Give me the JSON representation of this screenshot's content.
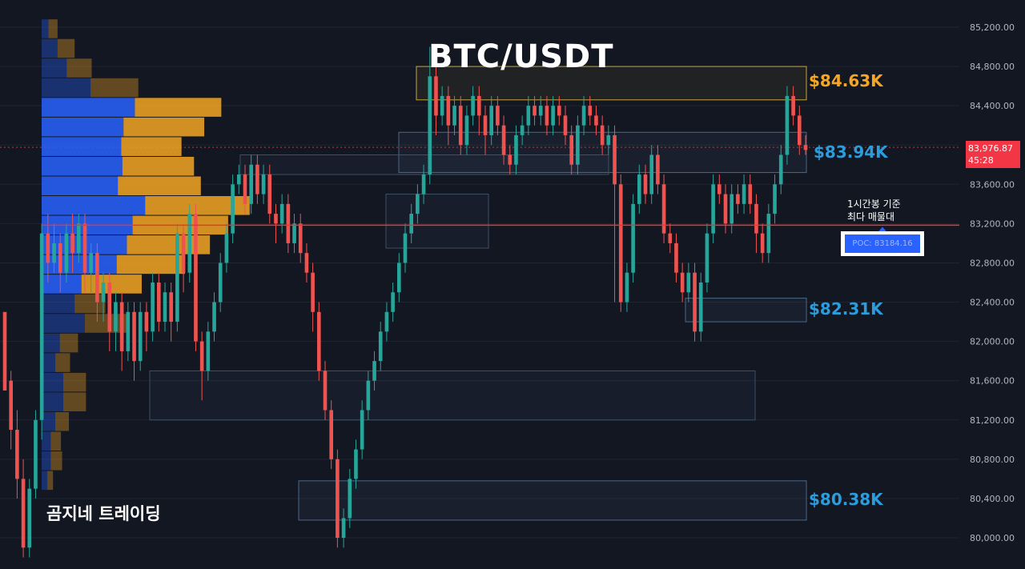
{
  "title": "BTC/USDT",
  "watermark": "곰지네 트레이딩",
  "poc_note": "1시간봉 기준\n최다 매물대",
  "poc_label": "POC: 83184.16",
  "last_price": {
    "value": "83,976.87",
    "countdown": "45:28"
  },
  "zone_labels": [
    {
      "text": "$84.63K",
      "color": "#f5a623"
    },
    {
      "text": "$83.94K",
      "color": "#2d9cdb"
    },
    {
      "text": "$82.31K",
      "color": "#2d9cdb"
    },
    {
      "text": "$80.38K",
      "color": "#2d9cdb"
    }
  ],
  "colors": {
    "background": "#131722",
    "grid": "#1f2433",
    "axis_text": "#b2b5be",
    "up": "#26a69a",
    "down": "#ef5350",
    "vp_up": "#2962ff",
    "vp_down": "#f5a623",
    "poc_line": "#e53935"
  },
  "chart_data": {
    "type": "candlestick",
    "title": "BTC/USDT",
    "timeframe": "1시간봉",
    "y_axis": {
      "ylim": [
        79800,
        85400
      ],
      "ticks": [
        "85,200.00",
        "84,800.00",
        "84,400.00",
        "84,000.00",
        "83,600.00",
        "83,200.00",
        "82,800.00",
        "82,400.00",
        "82,000.00",
        "81,600.00",
        "81,200.00",
        "80,800.00",
        "80,400.00",
        "80,000.00"
      ],
      "tick_values": [
        85200,
        84800,
        84400,
        84000,
        83600,
        83200,
        82800,
        82400,
        82000,
        81600,
        81200,
        80800,
        80400,
        80000
      ]
    },
    "last_price": 83976.87,
    "poc": 83184.16,
    "zones": [
      {
        "label": "$84.63K",
        "low": 84460,
        "high": 84800,
        "kind": "resistance"
      },
      {
        "label": "$83.94K",
        "low": 83720,
        "high": 84130,
        "kind": "support"
      },
      {
        "label": "$82.31K",
        "low": 82200,
        "high": 82440,
        "kind": "support"
      },
      {
        "label": "$80.38K",
        "low": 80180,
        "high": 80580,
        "kind": "support"
      }
    ],
    "volume_profile": {
      "bin_high": 85280,
      "bin_step": 200,
      "rows": [
        [
          0.6,
          0.8
        ],
        [
          1.4,
          1.5
        ],
        [
          2.2,
          2.2
        ],
        [
          4.3,
          4.2
        ],
        [
          8.2,
          7.6
        ],
        [
          7.2,
          7.1
        ],
        [
          7.0,
          5.3
        ],
        [
          7.1,
          6.3
        ],
        [
          6.7,
          7.3
        ],
        [
          9.1,
          9.2
        ],
        [
          8.0,
          8.4
        ],
        [
          7.5,
          7.3
        ],
        [
          6.6,
          6.0
        ],
        [
          3.5,
          5.3
        ],
        [
          2.9,
          2.7
        ],
        [
          3.8,
          3.7
        ],
        [
          1.6,
          1.6
        ],
        [
          1.2,
          1.3
        ],
        [
          1.9,
          2.0
        ],
        [
          1.9,
          2.0
        ],
        [
          1.2,
          1.2
        ],
        [
          0.8,
          0.9
        ],
        [
          0.8,
          1.0
        ],
        [
          0.5,
          0.5
        ]
      ]
    },
    "candles": [
      [
        82300,
        81500,
        82200,
        81600
      ],
      [
        81600,
        81100,
        81700,
        80900
      ],
      [
        81100,
        80600,
        81300,
        80400
      ],
      [
        80600,
        79900,
        80800,
        79800
      ],
      [
        79900,
        80500,
        80600,
        79800
      ],
      [
        80500,
        81200,
        81300,
        80400
      ],
      [
        81200,
        83100,
        83200,
        81000
      ],
      [
        83100,
        82800,
        83300,
        82600
      ],
      [
        82800,
        83000,
        83200,
        82700
      ],
      [
        83000,
        82700,
        83100,
        82500
      ],
      [
        82700,
        83100,
        83200,
        82600
      ],
      [
        83100,
        82900,
        83300,
        82700
      ],
      [
        82900,
        83200,
        83300,
        82800
      ],
      [
        83200,
        82700,
        83300,
        82500
      ],
      [
        82700,
        82900,
        83000,
        82500
      ],
      [
        82900,
        82400,
        83000,
        82200
      ],
      [
        82400,
        82600,
        82700,
        82200
      ],
      [
        82600,
        82100,
        82700,
        81900
      ],
      [
        82100,
        82400,
        82500,
        81900
      ],
      [
        82400,
        81900,
        82500,
        81700
      ],
      [
        81900,
        82300,
        82400,
        81800
      ],
      [
        82300,
        81800,
        82400,
        81600
      ],
      [
        81800,
        82300,
        82400,
        81700
      ],
      [
        82300,
        82100,
        82400,
        81900
      ],
      [
        82100,
        82600,
        82700,
        82000
      ],
      [
        82600,
        82200,
        82700,
        82100
      ],
      [
        82200,
        82500,
        82600,
        82100
      ],
      [
        82500,
        82200,
        82600,
        82000
      ],
      [
        82200,
        83100,
        83200,
        82100
      ],
      [
        83100,
        82700,
        83200,
        82500
      ],
      [
        82700,
        83300,
        83400,
        82600
      ],
      [
        83300,
        82000,
        83400,
        81900
      ],
      [
        82000,
        81700,
        82100,
        81400
      ],
      [
        81700,
        82100,
        82200,
        81600
      ],
      [
        82100,
        82400,
        82500,
        82000
      ],
      [
        82400,
        82800,
        82900,
        82300
      ],
      [
        82800,
        83100,
        83200,
        82700
      ],
      [
        83100,
        83600,
        83700,
        83000
      ],
      [
        83600,
        83700,
        83800,
        83500
      ],
      [
        83700,
        83400,
        83800,
        83300
      ],
      [
        83400,
        83800,
        83900,
        83300
      ],
      [
        83800,
        83500,
        83900,
        83400
      ],
      [
        83500,
        83700,
        83800,
        83400
      ],
      [
        83700,
        83300,
        83800,
        83200
      ],
      [
        83300,
        83200,
        83400,
        83000
      ],
      [
        83200,
        83400,
        83500,
        83100
      ],
      [
        83400,
        83000,
        83500,
        82900
      ],
      [
        83000,
        83200,
        83300,
        82900
      ],
      [
        83200,
        82900,
        83300,
        82800
      ],
      [
        82900,
        82700,
        83000,
        82600
      ],
      [
        82700,
        82300,
        82800,
        82100
      ],
      [
        82300,
        81700,
        82400,
        81600
      ],
      [
        81700,
        81300,
        81800,
        81200
      ],
      [
        81300,
        80800,
        81400,
        80700
      ],
      [
        80800,
        80000,
        80900,
        79900
      ],
      [
        80000,
        80200,
        80300,
        79900
      ],
      [
        80200,
        80600,
        80700,
        80100
      ],
      [
        80600,
        80900,
        81000,
        80500
      ],
      [
        80900,
        81300,
        81400,
        80800
      ],
      [
        81300,
        81600,
        81700,
        81200
      ],
      [
        81600,
        81800,
        81900,
        81500
      ],
      [
        81800,
        82100,
        82200,
        81700
      ],
      [
        82100,
        82300,
        82400,
        82000
      ],
      [
        82300,
        82500,
        82600,
        82200
      ],
      [
        82500,
        82800,
        82900,
        82400
      ],
      [
        82800,
        83100,
        83200,
        82700
      ],
      [
        83100,
        83300,
        83400,
        83000
      ],
      [
        83300,
        83500,
        83600,
        83200
      ],
      [
        83500,
        83700,
        83800,
        83400
      ],
      [
        83700,
        84700,
        85000,
        83600
      ],
      [
        84700,
        84300,
        84800,
        84100
      ],
      [
        84300,
        84500,
        84600,
        84200
      ],
      [
        84500,
        84200,
        84600,
        84000
      ],
      [
        84200,
        84400,
        84500,
        84100
      ],
      [
        84400,
        84000,
        84500,
        83900
      ],
      [
        84000,
        84300,
        84400,
        83900
      ],
      [
        84300,
        84500,
        84600,
        84200
      ],
      [
        84500,
        84300,
        84600,
        84100
      ],
      [
        84300,
        84100,
        84400,
        83900
      ],
      [
        84100,
        84400,
        84500,
        84000
      ],
      [
        84400,
        84200,
        84500,
        84100
      ],
      [
        84200,
        83900,
        84300,
        83800
      ],
      [
        83900,
        83800,
        84000,
        83700
      ],
      [
        83800,
        84100,
        84200,
        83700
      ],
      [
        84100,
        84200,
        84300,
        84000
      ],
      [
        84200,
        84400,
        84500,
        84100
      ],
      [
        84400,
        84300,
        84500,
        84200
      ],
      [
        84300,
        84400,
        84500,
        84200
      ],
      [
        84400,
        84200,
        84500,
        84100
      ],
      [
        84200,
        84400,
        84500,
        84100
      ],
      [
        84400,
        84300,
        84500,
        84200
      ],
      [
        84300,
        84100,
        84400,
        84000
      ],
      [
        84100,
        83800,
        84200,
        83700
      ],
      [
        83800,
        84200,
        84300,
        83700
      ],
      [
        84200,
        84400,
        84500,
        84100
      ],
      [
        84400,
        84300,
        84500,
        84200
      ],
      [
        84300,
        84200,
        84400,
        84100
      ],
      [
        84200,
        84000,
        84300,
        83900
      ],
      [
        84000,
        84100,
        84200,
        83900
      ],
      [
        84100,
        83600,
        84200,
        82400
      ],
      [
        83600,
        82400,
        83700,
        82300
      ],
      [
        82400,
        82700,
        82800,
        82300
      ],
      [
        82700,
        83400,
        83500,
        82600
      ],
      [
        83400,
        83700,
        83800,
        83300
      ],
      [
        83700,
        83500,
        83800,
        83400
      ],
      [
        83500,
        83900,
        84000,
        83400
      ],
      [
        83900,
        83600,
        84000,
        83500
      ],
      [
        83600,
        83100,
        83700,
        83000
      ],
      [
        83100,
        83000,
        83200,
        82900
      ],
      [
        83000,
        82700,
        83100,
        82600
      ],
      [
        82700,
        82500,
        82800,
        82400
      ],
      [
        82500,
        82700,
        82800,
        82400
      ],
      [
        82700,
        82100,
        82800,
        82000
      ],
      [
        82100,
        82600,
        82700,
        82000
      ],
      [
        82600,
        83100,
        83200,
        82500
      ],
      [
        83100,
        83600,
        83700,
        83000
      ],
      [
        83600,
        83500,
        83700,
        83400
      ],
      [
        83500,
        83200,
        83600,
        83100
      ],
      [
        83200,
        83500,
        83600,
        83100
      ],
      [
        83500,
        83400,
        83600,
        83300
      ],
      [
        83400,
        83600,
        83700,
        83300
      ],
      [
        83600,
        83400,
        83700,
        83300
      ],
      [
        83400,
        83100,
        83500,
        82900
      ],
      [
        83100,
        82900,
        83200,
        82800
      ],
      [
        82900,
        83300,
        83400,
        82800
      ],
      [
        83300,
        83600,
        83700,
        83200
      ],
      [
        83600,
        83900,
        84000,
        83500
      ],
      [
        83900,
        84500,
        84600,
        83800
      ],
      [
        84500,
        84300,
        84600,
        84200
      ],
      [
        84300,
        84000,
        84400,
        83900
      ],
      [
        84000,
        83950,
        84100,
        83900
      ]
    ]
  }
}
